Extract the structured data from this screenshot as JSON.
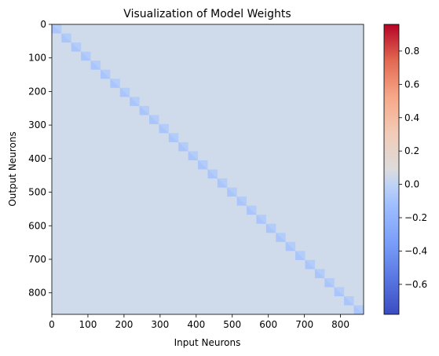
{
  "chart_data": {
    "type": "heatmap",
    "title": "Visualization of Model Weights",
    "xlabel": "Input Neurons",
    "ylabel": "Output Neurons",
    "xlim": [
      0,
      864
    ],
    "ylim": [
      864,
      0
    ],
    "x_ticks": [
      0,
      100,
      200,
      300,
      400,
      500,
      600,
      700,
      800
    ],
    "y_ticks": [
      0,
      100,
      200,
      300,
      400,
      500,
      600,
      700,
      800
    ],
    "colormap": "coolwarm",
    "colorbar": {
      "range": [
        -0.78,
        0.96
      ],
      "ticks": [
        -0.6,
        -0.4,
        -0.2,
        0.0,
        0.2,
        0.4,
        0.6,
        0.8
      ],
      "tick_labels": [
        "−0.6",
        "−0.4",
        "−0.2",
        "0.0",
        "0.2",
        "0.4",
        "0.6",
        "0.8"
      ]
    },
    "matrix_size": [
      864,
      864
    ],
    "background_value": 0.0,
    "diagonal_blocks": {
      "block_size": 27,
      "count": 32,
      "value": -0.15,
      "description": "block-diagonal structure, 27x27 blocks along the main diagonal"
    },
    "grid": false,
    "legend": "none"
  }
}
